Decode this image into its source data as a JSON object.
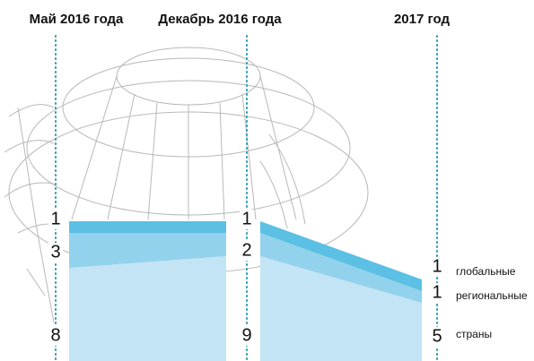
{
  "chart_data": {
    "type": "area",
    "categories": [
      "Май 2016 года",
      "Декабрь 2016 года",
      "2017 год"
    ],
    "series": [
      {
        "name": "глобальные",
        "color": "#5bc0e3",
        "values": [
          1,
          1,
          1
        ]
      },
      {
        "name": "региональные",
        "color": "#92d2ec",
        "values": [
          3,
          2,
          1
        ]
      },
      {
        "name": "страны",
        "color": "#c2e4f5",
        "values": [
          8,
          9,
          5
        ]
      }
    ]
  }
}
